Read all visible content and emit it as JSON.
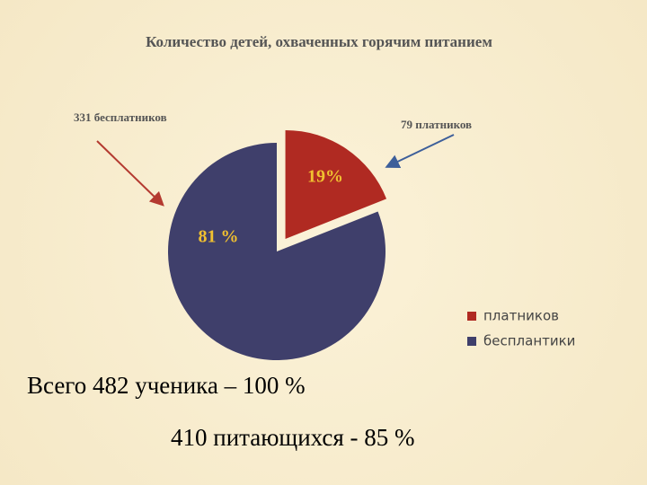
{
  "chart_data": {
    "type": "pie",
    "title": "Количество детей, охваченных горячим питанием",
    "categories": [
      "платников",
      "бесплантики"
    ],
    "values": [
      19,
      81
    ],
    "value_labels": [
      "19%",
      "81 %"
    ],
    "colors": [
      "#b02a22",
      "#3f3f6b"
    ],
    "annotations": [
      "331 бесплатников",
      "79 платников"
    ]
  },
  "notes": [
    "Всего 482 ученика – 100 %",
    "410 питающихся - 85 %"
  ]
}
